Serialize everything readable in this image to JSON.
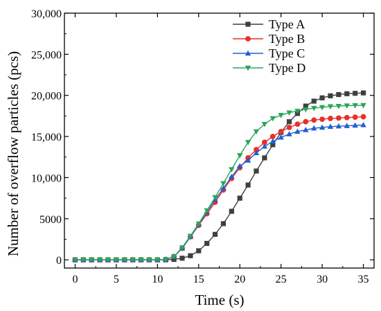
{
  "chart_data": {
    "type": "line",
    "xlabel": "Time (s)",
    "ylabel": "Number of overflow particles (pcs)",
    "xlim": [
      -1.3,
      36.3
    ],
    "ylim": [
      -1000,
      30000
    ],
    "x_ticks": [
      0,
      5,
      10,
      15,
      20,
      25,
      30,
      35
    ],
    "x_tick_labels": [
      "0",
      "5",
      "10",
      "15",
      "20",
      "25",
      "30",
      "35"
    ],
    "y_ticks": [
      0,
      5000,
      10000,
      15000,
      20000,
      25000,
      30000
    ],
    "y_tick_labels": [
      "0",
      "5000",
      "10,000",
      "15,000",
      "20,000",
      "25,000",
      "30,000"
    ],
    "legend_position": "top-right",
    "grid": false,
    "x": [
      0,
      1,
      2,
      3,
      4,
      5,
      6,
      7,
      8,
      9,
      10,
      11,
      12,
      13,
      14,
      15,
      16,
      17,
      18,
      19,
      20,
      21,
      22,
      23,
      24,
      25,
      26,
      27,
      28,
      29,
      30,
      31,
      32,
      33,
      34,
      35
    ],
    "series": [
      {
        "name": "Type A",
        "color": "#3f3f3f",
        "marker": "square",
        "values": [
          0,
          0,
          0,
          0,
          0,
          0,
          0,
          0,
          0,
          0,
          0,
          0,
          50,
          200,
          500,
          1100,
          2000,
          3100,
          4400,
          5900,
          7500,
          9100,
          10800,
          12400,
          14000,
          15500,
          16800,
          17800,
          18700,
          19300,
          19700,
          19950,
          20100,
          20200,
          20250,
          20300
        ]
      },
      {
        "name": "Type B",
        "color": "#e8302a",
        "marker": "circle",
        "values": [
          0,
          0,
          0,
          0,
          0,
          0,
          0,
          0,
          0,
          0,
          0,
          50,
          400,
          1400,
          2800,
          4200,
          5600,
          7000,
          8500,
          9900,
          11200,
          12400,
          13400,
          14300,
          15000,
          15600,
          16100,
          16500,
          16800,
          17000,
          17100,
          17200,
          17250,
          17300,
          17350,
          17400
        ]
      },
      {
        "name": "Type C",
        "color": "#1f5fd0",
        "marker": "triangle-up",
        "values": [
          0,
          0,
          0,
          0,
          0,
          0,
          0,
          0,
          0,
          0,
          0,
          50,
          400,
          1400,
          2800,
          4300,
          5800,
          7300,
          8700,
          10100,
          11400,
          12100,
          13000,
          13800,
          14400,
          14900,
          15300,
          15600,
          15800,
          16000,
          16100,
          16200,
          16250,
          16300,
          16350,
          16400
        ]
      },
      {
        "name": "Type D",
        "color": "#2aa65a",
        "marker": "triangle-down",
        "values": [
          0,
          0,
          0,
          0,
          0,
          0,
          0,
          0,
          0,
          0,
          0,
          50,
          400,
          1500,
          2900,
          4400,
          6000,
          7600,
          9300,
          11000,
          12700,
          14300,
          15600,
          16500,
          17200,
          17600,
          17900,
          18100,
          18300,
          18450,
          18550,
          18650,
          18700,
          18750,
          18780,
          18800
        ]
      }
    ]
  }
}
